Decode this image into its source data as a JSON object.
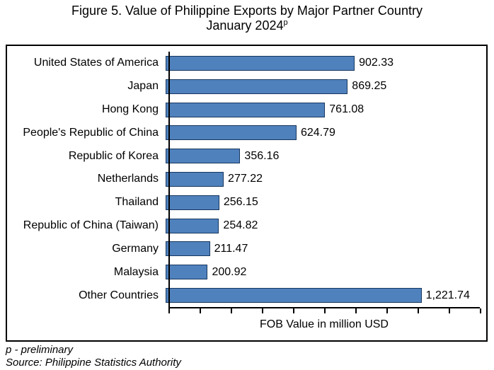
{
  "title": {
    "line1": "Figure 5. Value of Philippine Exports by Major Partner Country",
    "line2": "January 2024",
    "line2_superscript": "p"
  },
  "chart_data": {
    "type": "bar",
    "orientation": "horizontal",
    "categories": [
      "United States of America",
      "Japan",
      "Hong Kong",
      "People's Republic of China",
      "Republic of Korea",
      "Netherlands",
      "Thailand",
      "Republic of China (Taiwan)",
      "Germany",
      "Malaysia",
      "Other Countries"
    ],
    "values": [
      902.33,
      869.25,
      761.08,
      624.79,
      356.16,
      277.22,
      256.15,
      254.82,
      211.47,
      200.92,
      1221.74
    ],
    "value_labels": [
      "902.33",
      "869.25",
      "761.08",
      "624.79",
      "356.16",
      "277.22",
      "256.15",
      "254.82",
      "211.47",
      "200.92",
      "1,221.74"
    ],
    "xlabel": "FOB Value in million USD",
    "xlim": [
      0,
      1500
    ],
    "tick_interval": 150,
    "grid": false,
    "legend": "none",
    "bar_color": "#4F81BD",
    "bar_border_color": "#17375E",
    "axis_color": "#000000"
  },
  "footer": {
    "note": "p - preliminary",
    "source": "Source: Philippine Statistics Authority"
  }
}
